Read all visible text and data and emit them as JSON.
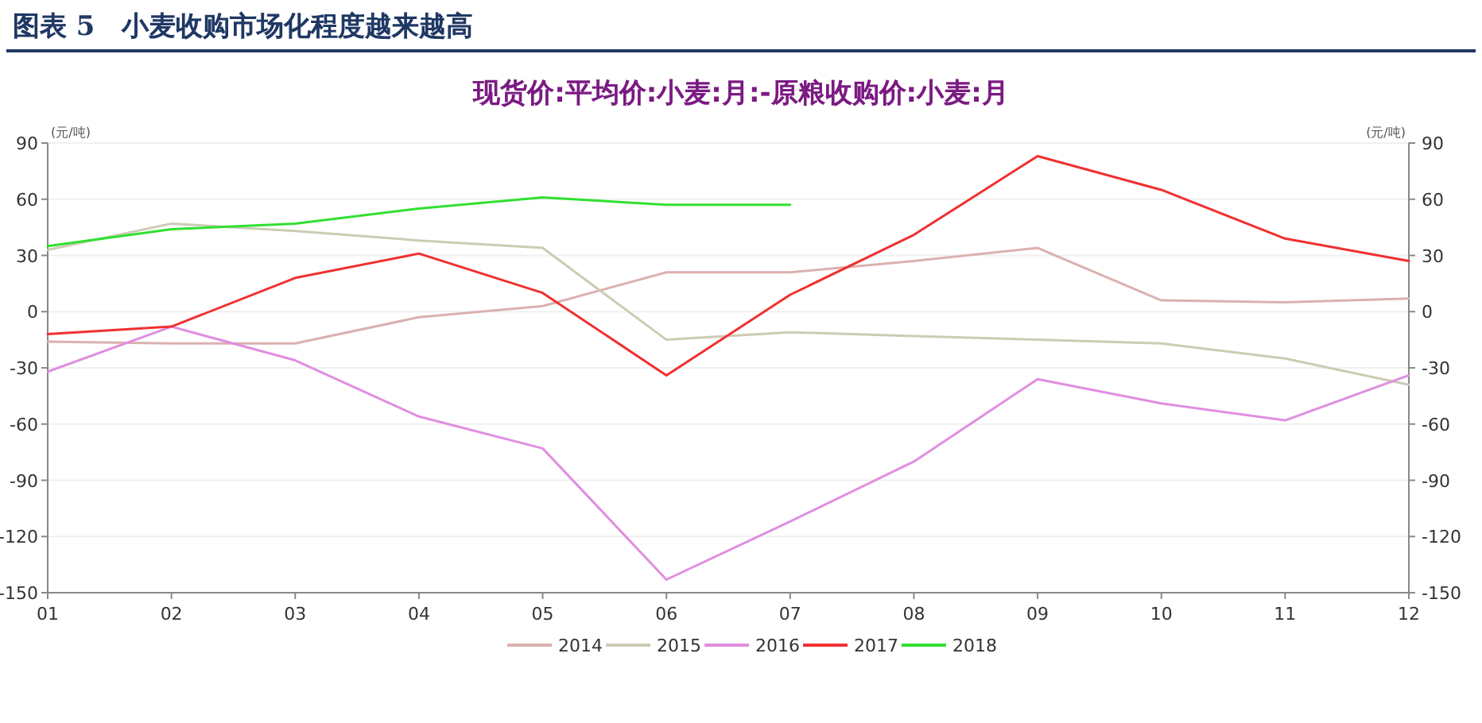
{
  "chart_data": {
    "type": "line",
    "title": "图表 5　小麦收购市场化程度越来越高",
    "subtitle": "现货价:平均价:小麦:月:-原粮收购价:小麦:月",
    "ylabel": "(元/吨)",
    "y2label": "(元/吨)",
    "categories": [
      "01",
      "02",
      "03",
      "04",
      "05",
      "06",
      "07",
      "08",
      "09",
      "10",
      "11",
      "12"
    ],
    "ylim": [
      -150,
      90
    ],
    "yticks": [
      90,
      60,
      30,
      0,
      -30,
      -60,
      -90,
      -120,
      -150
    ],
    "y2lim": [
      -150,
      90
    ],
    "y2ticks": [
      90,
      60,
      30,
      0,
      -30,
      -60,
      -90,
      -120,
      -150
    ],
    "grid": "y",
    "legend": "bottom",
    "marker": "none",
    "line_style": "solid",
    "series": [
      {
        "name": "2014",
        "color": "#dcb0b0",
        "values": [
          -16,
          -17,
          -17,
          -3,
          3,
          21,
          21,
          27,
          34,
          6,
          5,
          7
        ]
      },
      {
        "name": "2015",
        "color": "#cdcbb4",
        "values": [
          33,
          47,
          43,
          38,
          34,
          -15,
          -11,
          -13,
          -15,
          -17,
          -25,
          -39
        ]
      },
      {
        "name": "2016",
        "color": "#e08ee0",
        "values": [
          -32,
          -8,
          -26,
          -56,
          -73,
          -143,
          -112,
          -80,
          -36,
          -49,
          -58,
          -34
        ]
      },
      {
        "name": "2017",
        "color": "#f03030",
        "values": [
          -12,
          -8,
          18,
          31,
          10,
          -34,
          9,
          41,
          83,
          65,
          39,
          27
        ]
      },
      {
        "name": "2018",
        "color": "#30e030",
        "values": [
          35,
          44,
          47,
          55,
          61,
          57,
          57,
          null,
          null,
          null,
          null,
          null
        ]
      }
    ]
  }
}
